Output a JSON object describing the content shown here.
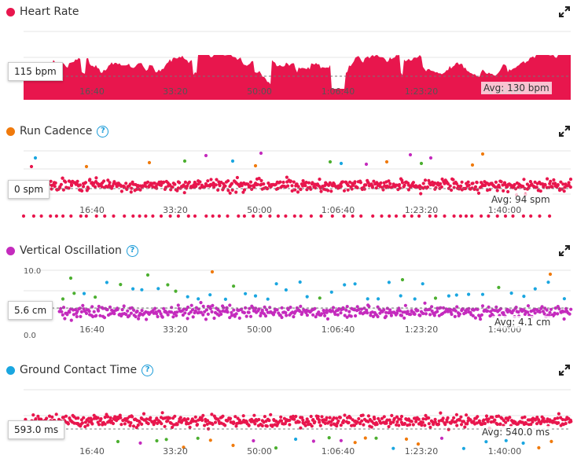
{
  "charts": [
    {
      "title": "Heart Rate",
      "dot_color": "#e8164d",
      "help": false,
      "current_label": "115 bpm",
      "avg_label": "Avg: 130 bpm",
      "x_ticks": [
        "16:40",
        "33:20",
        "50:00",
        "1:06:40",
        "1:23:20",
        "1:40:00"
      ]
    },
    {
      "title": "Run Cadence",
      "dot_color": "#f07a0c",
      "help": true,
      "help_label": "?",
      "current_label": "0 spm",
      "avg_label": "Avg: 94 spm",
      "x_ticks": [
        "16:40",
        "33:20",
        "50:00",
        "1:06:40",
        "1:23:20",
        "1:40:00"
      ]
    },
    {
      "title": "Vertical Oscillation",
      "dot_color": "#c42bbd",
      "help": true,
      "help_label": "?",
      "current_label": "5.6 cm",
      "avg_label": "Avg: 4.1 cm",
      "y_ticks": [
        "10.0",
        "0.0"
      ],
      "x_ticks": [
        "16:40",
        "33:20",
        "50:00",
        "1:06:40",
        "1:23:20",
        "1:40:00"
      ]
    },
    {
      "title": "Ground Contact Time",
      "dot_color": "#1aa6e0",
      "help": true,
      "help_label": "?",
      "current_label": "593.0 ms",
      "avg_label": "Avg: 540.0 ms",
      "x_ticks": [
        "16:40",
        "33:20",
        "50:00",
        "1:06:40",
        "1:23:20",
        "1:40:00"
      ]
    }
  ],
  "chart_data": [
    {
      "type": "area",
      "series": [
        {
          "values": []
        }
      ]
    },
    {
      "type": "scatter",
      "series": [
        {
          "values": []
        }
      ]
    },
    {
      "type": "scatter",
      "ylim": [
        0,
        10
      ],
      "series": [
        {
          "values": []
        }
      ]
    },
    {
      "type": "scatter",
      "series": [
        {
          "values": []
        }
      ]
    }
  ]
}
